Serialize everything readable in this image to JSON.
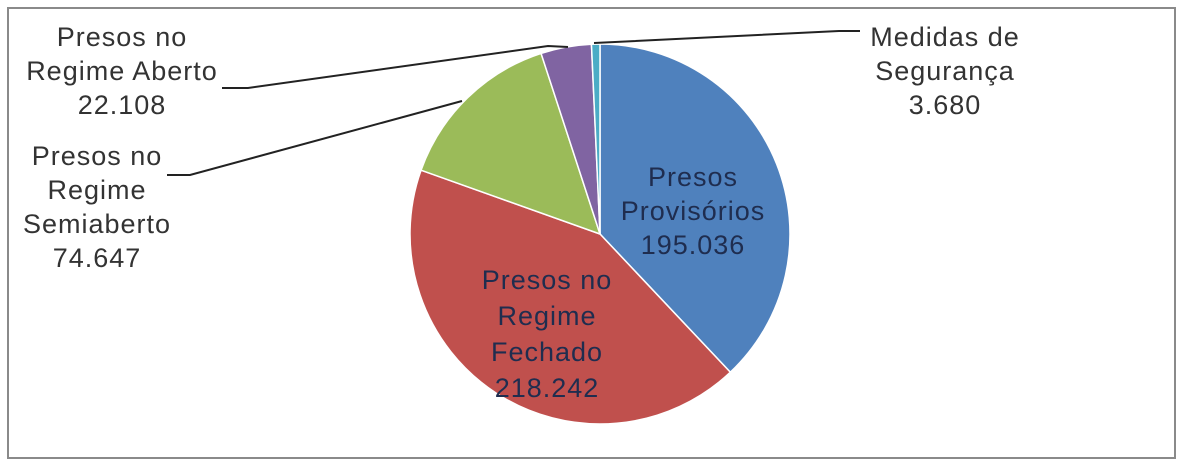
{
  "chart_data": {
    "type": "pie",
    "title": "",
    "slices": [
      {
        "label": "Presos Provisórios",
        "label_lines": [
          "Presos",
          "Provisórios"
        ],
        "value_text": "195.036",
        "value": 195036,
        "color": "#4F81BD",
        "label_position": "inside"
      },
      {
        "label": "Presos no Regime Fechado",
        "label_lines": [
          "Presos no",
          "Regime",
          "Fechado"
        ],
        "value_text": "218.242",
        "value": 218242,
        "color": "#C0504D",
        "label_position": "inside"
      },
      {
        "label": "Presos no Regime Semiaberto",
        "label_lines": [
          "Presos no",
          "Regime",
          "Semiaberto"
        ],
        "value_text": "74.647",
        "value": 74647,
        "color": "#9BBB59",
        "label_position": "outside"
      },
      {
        "label": "Presos no Regime Aberto",
        "label_lines": [
          "Presos no",
          "Regime Aberto"
        ],
        "value_text": "22.108",
        "value": 22108,
        "color": "#8064A2",
        "label_position": "outside"
      },
      {
        "label": "Medidas de Segurança",
        "label_lines": [
          "Medidas de",
          "Segurança"
        ],
        "value_text": "3.680",
        "value": 3680,
        "color": "#4BACC6",
        "label_position": "outside"
      }
    ],
    "legend": "none",
    "start": "12 o'clock, clockwise"
  }
}
